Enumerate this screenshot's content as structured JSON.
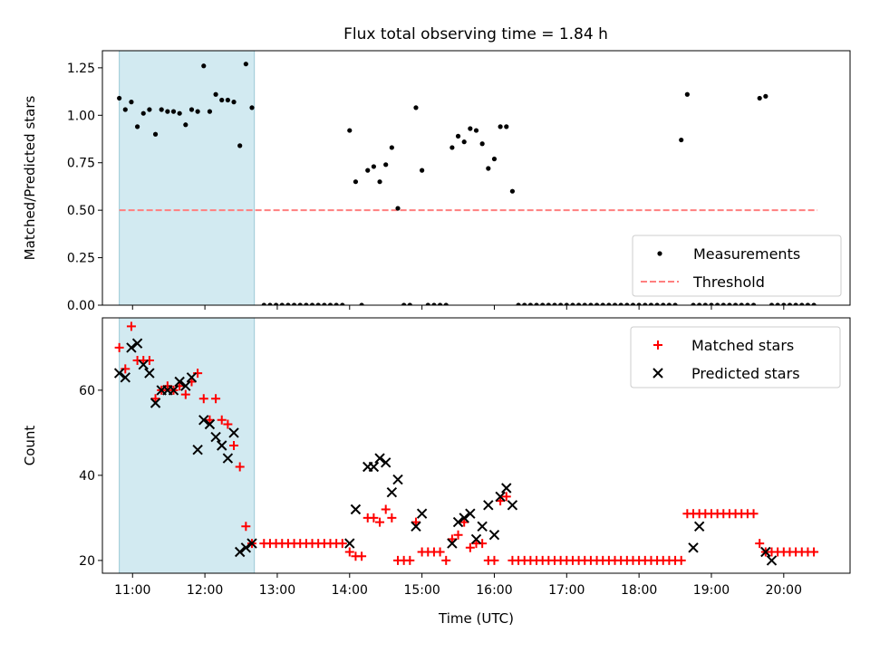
{
  "title": "Flux total observing time = 1.84 h",
  "chart_data": [
    {
      "type": "scatter",
      "ylabel": "Matched/Predicted stars",
      "xlim": [
        "10:35",
        "20:55"
      ],
      "ylim": [
        0,
        1.34
      ],
      "yticks": [
        0.0,
        0.25,
        0.5,
        0.75,
        1.0,
        1.25
      ],
      "ytick_labels": [
        "0.00",
        "0.25",
        "0.50",
        "0.75",
        "1.00",
        "1.25"
      ],
      "shaded_span": {
        "start": "10:49",
        "end": "12:41",
        "color": "#add8e6"
      },
      "threshold": {
        "name": "Threshold",
        "value": 0.5,
        "from": "10:49",
        "to": "20:28",
        "color": "#ff7f7f"
      },
      "legend_position": "lower right",
      "series": [
        {
          "name": "Measurements",
          "color": "#000000",
          "marker": "dot",
          "x": [
            "10:49",
            "10:54",
            "10:59",
            "11:04",
            "11:09",
            "11:14",
            "11:19",
            "11:24",
            "11:29",
            "11:34",
            "11:39",
            "11:44",
            "11:49",
            "11:54",
            "11:59",
            "12:04",
            "12:09",
            "12:14",
            "12:19",
            "12:24",
            "12:29",
            "12:34",
            "12:39",
            "12:49",
            "12:54",
            "12:59",
            "13:04",
            "13:09",
            "13:14",
            "13:19",
            "13:24",
            "13:29",
            "13:34",
            "13:39",
            "13:44",
            "13:49",
            "13:54",
            "14:00",
            "14:05",
            "14:10",
            "14:15",
            "14:20",
            "14:25",
            "14:30",
            "14:35",
            "14:40",
            "14:45",
            "14:50",
            "14:55",
            "15:00",
            "15:05",
            "15:10",
            "15:15",
            "15:20",
            "15:25",
            "15:30",
            "15:35",
            "15:40",
            "15:45",
            "15:50",
            "15:55",
            "16:00",
            "16:05",
            "16:10",
            "16:15",
            "16:20",
            "16:25",
            "16:30",
            "16:35",
            "16:40",
            "16:45",
            "16:50",
            "16:55",
            "17:00",
            "17:05",
            "17:10",
            "17:15",
            "17:20",
            "17:25",
            "17:30",
            "17:35",
            "17:40",
            "17:45",
            "17:50",
            "17:55",
            "18:00",
            "18:05",
            "18:10",
            "18:15",
            "18:20",
            "18:25",
            "18:30",
            "18:35",
            "18:40",
            "18:45",
            "18:50",
            "18:55",
            "19:00",
            "19:05",
            "19:10",
            "19:15",
            "19:20",
            "19:25",
            "19:30",
            "19:35",
            "19:40",
            "19:45",
            "19:50",
            "19:55",
            "20:00",
            "20:05",
            "20:10",
            "20:15",
            "20:20",
            "20:25"
          ],
          "y": [
            1.09,
            1.03,
            1.07,
            0.94,
            1.01,
            1.03,
            0.9,
            1.03,
            1.02,
            1.02,
            1.01,
            0.95,
            1.03,
            1.02,
            1.26,
            1.02,
            1.11,
            1.08,
            1.08,
            1.07,
            0.84,
            1.27,
            1.04,
            0,
            0,
            0,
            0,
            0,
            0,
            0,
            0,
            0,
            0,
            0,
            0,
            0,
            0,
            0.92,
            0.65,
            0,
            0.71,
            0.73,
            0.65,
            0.74,
            0.83,
            0.51,
            0,
            0,
            1.04,
            0.71,
            0,
            0,
            0,
            0,
            0.83,
            0.89,
            0.86,
            0.93,
            0.92,
            0.85,
            0.72,
            0.77,
            0.94,
            0.94,
            0.6,
            0,
            0,
            0,
            0,
            0,
            0,
            0,
            0,
            0,
            0,
            0,
            0,
            0,
            0,
            0,
            0,
            0,
            0,
            0,
            0,
            0,
            0,
            0,
            0,
            0,
            0,
            0,
            0.87,
            1.11,
            0,
            0,
            0,
            0,
            0,
            0,
            0,
            0,
            0,
            0,
            0,
            1.09,
            1.1,
            0,
            0,
            0,
            0,
            0,
            0,
            0,
            0
          ]
        }
      ]
    },
    {
      "type": "scatter",
      "xlabel": "Time (UTC)",
      "ylabel": "Count",
      "xlim": [
        "10:35",
        "20:55"
      ],
      "xticks": [
        "11:00",
        "12:00",
        "13:00",
        "14:00",
        "15:00",
        "16:00",
        "17:00",
        "18:00",
        "19:00",
        "20:00"
      ],
      "ylim": [
        17,
        77
      ],
      "yticks": [
        20,
        40,
        60
      ],
      "shaded_span": {
        "start": "10:49",
        "end": "12:41",
        "color": "#add8e6"
      },
      "legend_position": "upper right",
      "series": [
        {
          "name": "Matched stars",
          "color": "#ff0000",
          "marker": "plus",
          "x": [
            "10:49",
            "10:54",
            "10:59",
            "11:04",
            "11:09",
            "11:14",
            "11:19",
            "11:24",
            "11:29",
            "11:34",
            "11:39",
            "11:44",
            "11:49",
            "11:54",
            "11:59",
            "12:04",
            "12:09",
            "12:14",
            "12:19",
            "12:24",
            "12:29",
            "12:34",
            "12:39",
            "12:49",
            "12:54",
            "12:59",
            "13:04",
            "13:09",
            "13:14",
            "13:19",
            "13:24",
            "13:29",
            "13:34",
            "13:39",
            "13:44",
            "13:49",
            "13:54",
            "14:00",
            "14:05",
            "14:10",
            "14:15",
            "14:20",
            "14:25",
            "14:30",
            "14:35",
            "14:40",
            "14:45",
            "14:50",
            "14:55",
            "15:00",
            "15:05",
            "15:10",
            "15:15",
            "15:20",
            "15:25",
            "15:30",
            "15:35",
            "15:40",
            "15:45",
            "15:50",
            "15:55",
            "16:00",
            "16:05",
            "16:10",
            "16:15",
            "16:20",
            "16:25",
            "16:30",
            "16:35",
            "16:40",
            "16:45",
            "16:50",
            "16:55",
            "17:00",
            "17:05",
            "17:10",
            "17:15",
            "17:20",
            "17:25",
            "17:30",
            "17:35",
            "17:40",
            "17:45",
            "17:50",
            "17:55",
            "18:00",
            "18:05",
            "18:10",
            "18:15",
            "18:20",
            "18:25",
            "18:30",
            "18:35",
            "18:40",
            "18:45",
            "18:50",
            "18:55",
            "19:00",
            "19:05",
            "19:10",
            "19:15",
            "19:20",
            "19:25",
            "19:30",
            "19:35",
            "19:40",
            "19:45",
            "19:50",
            "19:55",
            "20:00",
            "20:05",
            "20:10",
            "20:15",
            "20:20",
            "20:25"
          ],
          "y": [
            70,
            65,
            75,
            67,
            67,
            67,
            58,
            60,
            61,
            60,
            61,
            59,
            62,
            64,
            58,
            53,
            58,
            53,
            52,
            47,
            42,
            28,
            24,
            24,
            24,
            24,
            24,
            24,
            24,
            24,
            24,
            24,
            24,
            24,
            24,
            24,
            24,
            22,
            21,
            21,
            30,
            30,
            29,
            32,
            30,
            20,
            20,
            20,
            29,
            22,
            22,
            22,
            22,
            20,
            25,
            26,
            29,
            23,
            24,
            24,
            20,
            20,
            34,
            35,
            20,
            20,
            20,
            20,
            20,
            20,
            20,
            20,
            20,
            20,
            20,
            20,
            20,
            20,
            20,
            20,
            20,
            20,
            20,
            20,
            20,
            20,
            20,
            20,
            20,
            20,
            20,
            20,
            20,
            31,
            31,
            31,
            31,
            31,
            31,
            31,
            31,
            31,
            31,
            31,
            31,
            24,
            22,
            22,
            22,
            22,
            22,
            22,
            22,
            22,
            22
          ]
        },
        {
          "name": "Predicted stars",
          "color": "#000000",
          "marker": "x",
          "x": [
            "10:49",
            "10:54",
            "10:59",
            "11:04",
            "11:09",
            "11:14",
            "11:19",
            "11:24",
            "11:29",
            "11:34",
            "11:39",
            "11:44",
            "11:49",
            "11:54",
            "11:59",
            "12:04",
            "12:09",
            "12:14",
            "12:19",
            "12:24",
            "12:29",
            "12:34",
            "12:39",
            "14:00",
            "14:05",
            "14:15",
            "14:20",
            "14:25",
            "14:30",
            "14:35",
            "14:40",
            "14:55",
            "15:00",
            "15:25",
            "15:30",
            "15:35",
            "15:40",
            "15:45",
            "15:50",
            "15:55",
            "16:00",
            "16:05",
            "16:10",
            "16:15",
            "18:45",
            "18:50",
            "19:45",
            "19:50"
          ],
          "y": [
            64,
            63,
            70,
            71,
            66,
            64,
            57,
            60,
            60,
            60,
            62,
            61,
            63,
            46,
            53,
            52,
            49,
            47,
            44,
            50,
            22,
            23,
            24,
            24,
            32,
            42,
            42,
            44,
            43,
            36,
            39,
            28,
            31,
            24,
            29,
            30,
            31,
            25,
            28,
            33,
            26,
            35,
            37,
            33,
            23,
            28,
            22,
            20
          ]
        }
      ]
    }
  ]
}
